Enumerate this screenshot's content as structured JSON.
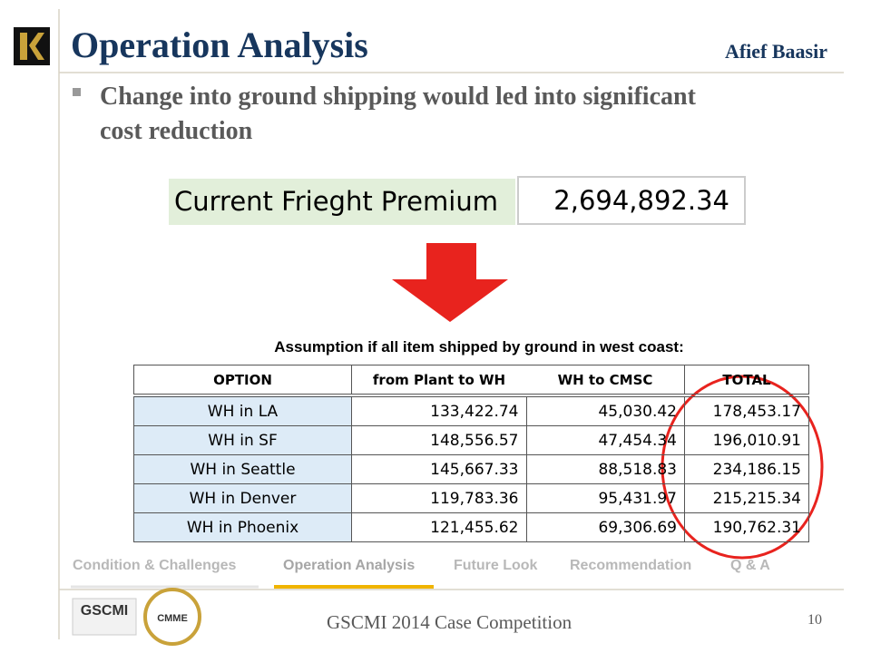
{
  "header": {
    "title": "Operation Analysis",
    "author": "Afief Baasir"
  },
  "bullet": "Change into ground shipping would led into significant cost reduction",
  "premium": {
    "label": "Current Frieght Premium",
    "value": "2,694,892.34"
  },
  "caption": "Assumption if all item shipped by ground in west coast:",
  "table": {
    "columns": [
      "OPTION",
      "from Plant to WH",
      "WH to CMSC",
      "TOTAL"
    ],
    "rows": [
      [
        "WH in LA",
        "133,422.74",
        "45,030.42",
        "178,453.17"
      ],
      [
        "WH in SF",
        "148,556.57",
        "47,454.34",
        "196,010.91"
      ],
      [
        "WH in Seattle",
        "145,667.33",
        "88,518.83",
        "234,186.15"
      ],
      [
        "WH in Denver",
        "119,783.36",
        "95,431.97",
        "215,215.34"
      ],
      [
        "WH in Phoenix",
        "121,455.62",
        "69,306.69",
        "190,762.31"
      ]
    ]
  },
  "nav": [
    "Condition & Challenges",
    "Operation Analysis",
    "Future Look",
    "Recommendation",
    "Q & A"
  ],
  "footer": {
    "text": "GSCMI 2014 Case Competition",
    "page": "10",
    "logos": [
      "GSCMI",
      "CMME"
    ]
  }
}
